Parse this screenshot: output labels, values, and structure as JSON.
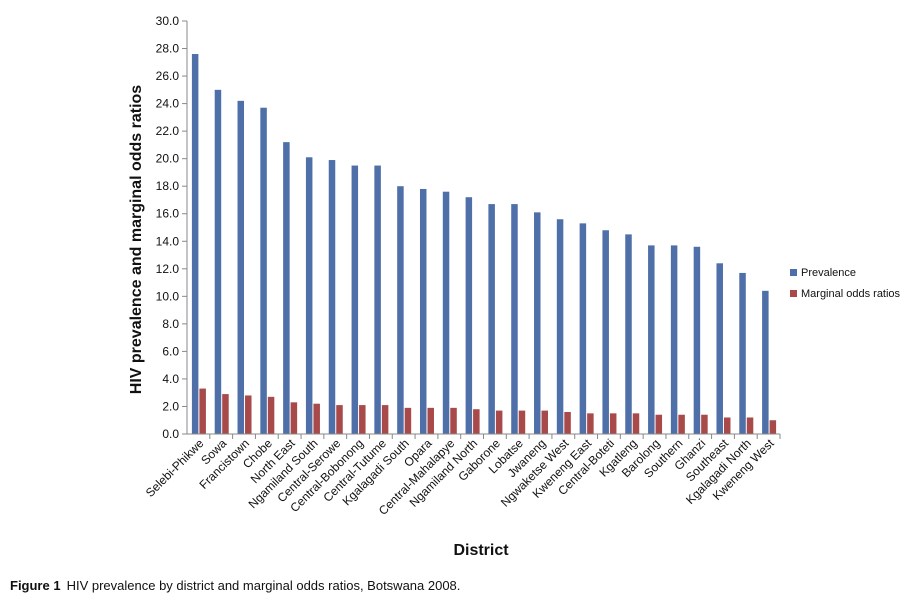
{
  "caption": {
    "label": "Figure 1",
    "text": "HIV prevalence by district and marginal odds ratios, Botswana 2008."
  },
  "chart_data": {
    "type": "bar",
    "xlabel": "District",
    "ylabel": "HIV prevalence and marginal  odds ratios",
    "ylim": [
      0,
      30
    ],
    "ytick_step": 2,
    "grid": false,
    "legend_position": "right",
    "categories": [
      "Selebi-Phikwe",
      "Sowa",
      "Francistown",
      "Chobe",
      "North East",
      "Ngamiland South",
      "Central-Serowe",
      "Central-Bobonong",
      "Central-Tutume",
      "Kgalagadi South",
      "Opara",
      "Central-Mahalapye",
      "Ngamiland North",
      "Gaborone",
      "Lobatse",
      "Jwaneng",
      "Ngwaketse West",
      "Kweneng East",
      "Central-Boteti",
      "Kgatleng",
      "Barolong",
      "Southern",
      "Ghanzi",
      "Southeast",
      "Kgalagadi North",
      "Kweneng West"
    ],
    "series": [
      {
        "name": "Prevalence",
        "color": "#4f6fa8",
        "values": [
          27.6,
          25.0,
          24.2,
          23.7,
          21.2,
          20.1,
          19.9,
          19.5,
          19.5,
          18.0,
          17.8,
          17.6,
          17.2,
          16.7,
          16.7,
          16.1,
          15.6,
          15.3,
          14.8,
          14.5,
          13.7,
          13.7,
          13.6,
          12.4,
          11.7,
          10.4
        ]
      },
      {
        "name": "Marginal odds ratios",
        "color": "#a84a4a",
        "values": [
          3.3,
          2.9,
          2.8,
          2.7,
          2.3,
          2.2,
          2.1,
          2.1,
          2.1,
          1.9,
          1.9,
          1.9,
          1.8,
          1.7,
          1.7,
          1.7,
          1.6,
          1.5,
          1.5,
          1.5,
          1.4,
          1.4,
          1.4,
          1.2,
          1.2,
          1.0
        ]
      }
    ]
  }
}
